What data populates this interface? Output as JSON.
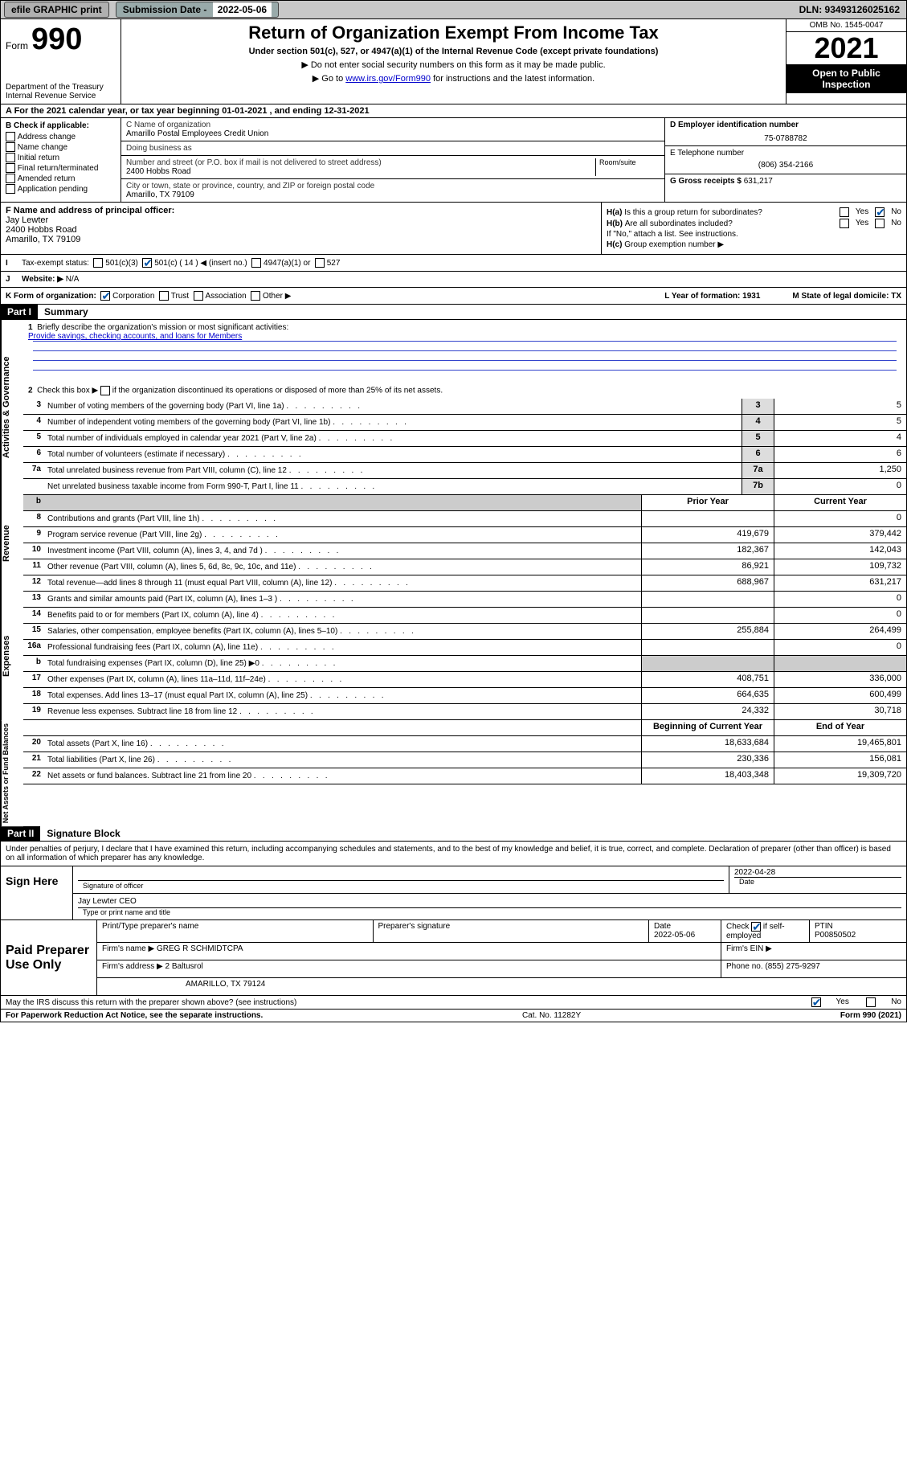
{
  "topbar": {
    "efile": "efile GRAPHIC print",
    "sub_label": "Submission Date - ",
    "sub_date": "2022-05-06",
    "dln": "DLN: 93493126025162"
  },
  "header": {
    "form_word": "Form",
    "form_no": "990",
    "title": "Return of Organization Exempt From Income Tax",
    "sub1": "Under section 501(c), 527, or 4947(a)(1) of the Internal Revenue Code (except private foundations)",
    "sub2": "Do not enter social security numbers on this form as it may be made public.",
    "sub3_a": "Go to ",
    "sub3_link": "www.irs.gov/Form990",
    "sub3_b": " for instructions and the latest information.",
    "dept": "Department of the Treasury\nInternal Revenue Service",
    "omb": "OMB No. 1545-0047",
    "year": "2021",
    "open": "Open to Public Inspection"
  },
  "rowA": "A For the 2021 calendar year, or tax year beginning 01-01-2021    , and ending 12-31-2021",
  "B": {
    "hdr": "B Check if applicable:",
    "items": [
      "Address change",
      "Name change",
      "Initial return",
      "Final return/terminated",
      "Amended return",
      "Application pending"
    ]
  },
  "C": {
    "name_lbl": "C Name of organization",
    "name": "Amarillo Postal Employees Credit Union",
    "dba_lbl": "Doing business as",
    "addr_lbl": "Number and street (or P.O. box if mail is not delivered to street address)",
    "room_lbl": "Room/suite",
    "addr": "2400 Hobbs Road",
    "city_lbl": "City or town, state or province, country, and ZIP or foreign postal code",
    "city": "Amarillo, TX  79109"
  },
  "D": {
    "lbl": "D Employer identification number",
    "val": "75-0788782"
  },
  "E": {
    "lbl": "E Telephone number",
    "val": "(806) 354-2166"
  },
  "G": {
    "lbl": "G Gross receipts $ ",
    "val": "631,217"
  },
  "F": {
    "lbl": "F Name and address of principal officer:",
    "name": "Jay Lewter",
    "addr1": "2400 Hobbs Road",
    "addr2": "Amarillo, TX  79109"
  },
  "H": {
    "a": "Is this a group return for subordinates?",
    "b": "Are all subordinates included?",
    "note": "If \"No,\" attach a list. See instructions.",
    "c": "Group exemption number ▶",
    "ha_lbl": "H(a)",
    "hb_lbl": "H(b)",
    "hc_lbl": "H(c)"
  },
  "I": {
    "lbl": "Tax-exempt status:",
    "opts": [
      "501(c)(3)",
      "501(c) ( 14 ) ◀ (insert no.)",
      "4947(a)(1) or",
      "527"
    ]
  },
  "J": {
    "lbl": "Website: ▶",
    "val": "N/A"
  },
  "K": {
    "lbl": "K Form of organization:",
    "opts": [
      "Corporation",
      "Trust",
      "Association",
      "Other ▶"
    ],
    "L": "L Year of formation: 1931",
    "M": "M State of legal domicile: TX"
  },
  "partI": {
    "hdr": "Part I",
    "title": "Summary"
  },
  "gov": {
    "q1": "Briefly describe the organization's mission or most significant activities:",
    "mission": "Provide savings, checking accounts, and loans for Members",
    "q2a": "Check this box ▶",
    "q2b": " if the organization discontinued its operations or disposed of more than 25% of its net assets.",
    "rows": [
      {
        "n": "3",
        "d": "Number of voting members of the governing body (Part VI, line 1a)",
        "box": "3",
        "v": "5"
      },
      {
        "n": "4",
        "d": "Number of independent voting members of the governing body (Part VI, line 1b)",
        "box": "4",
        "v": "5"
      },
      {
        "n": "5",
        "d": "Total number of individuals employed in calendar year 2021 (Part V, line 2a)",
        "box": "5",
        "v": "4"
      },
      {
        "n": "6",
        "d": "Total number of volunteers (estimate if necessary)",
        "box": "6",
        "v": "6"
      },
      {
        "n": "7a",
        "d": "Total unrelated business revenue from Part VIII, column (C), line 12",
        "box": "7a",
        "v": "1,250"
      },
      {
        "n": "",
        "d": "Net unrelated business taxable income from Form 990-T, Part I, line 11",
        "box": "7b",
        "v": "0"
      }
    ]
  },
  "colhdrs": {
    "prior": "Prior Year",
    "curr": "Current Year"
  },
  "rev": [
    {
      "n": "8",
      "d": "Contributions and grants (Part VIII, line 1h)",
      "p": "",
      "c": "0"
    },
    {
      "n": "9",
      "d": "Program service revenue (Part VIII, line 2g)",
      "p": "419,679",
      "c": "379,442"
    },
    {
      "n": "10",
      "d": "Investment income (Part VIII, column (A), lines 3, 4, and 7d )",
      "p": "182,367",
      "c": "142,043"
    },
    {
      "n": "11",
      "d": "Other revenue (Part VIII, column (A), lines 5, 6d, 8c, 9c, 10c, and 11e)",
      "p": "86,921",
      "c": "109,732"
    },
    {
      "n": "12",
      "d": "Total revenue—add lines 8 through 11 (must equal Part VIII, column (A), line 12)",
      "p": "688,967",
      "c": "631,217"
    }
  ],
  "exp": [
    {
      "n": "13",
      "d": "Grants and similar amounts paid (Part IX, column (A), lines 1–3 )",
      "p": "",
      "c": "0"
    },
    {
      "n": "14",
      "d": "Benefits paid to or for members (Part IX, column (A), line 4)",
      "p": "",
      "c": "0"
    },
    {
      "n": "15",
      "d": "Salaries, other compensation, employee benefits (Part IX, column (A), lines 5–10)",
      "p": "255,884",
      "c": "264,499"
    },
    {
      "n": "16a",
      "d": "Professional fundraising fees (Part IX, column (A), line 11e)",
      "p": "",
      "c": "0"
    },
    {
      "n": "b",
      "d": "Total fundraising expenses (Part IX, column (D), line 25) ▶0",
      "p": "shade",
      "c": "shade"
    },
    {
      "n": "17",
      "d": "Other expenses (Part IX, column (A), lines 11a–11d, 11f–24e)",
      "p": "408,751",
      "c": "336,000"
    },
    {
      "n": "18",
      "d": "Total expenses. Add lines 13–17 (must equal Part IX, column (A), line 25)",
      "p": "664,635",
      "c": "600,499"
    },
    {
      "n": "19",
      "d": "Revenue less expenses. Subtract line 18 from line 12",
      "p": "24,332",
      "c": "30,718"
    }
  ],
  "colhdrs2": {
    "prior": "Beginning of Current Year",
    "curr": "End of Year"
  },
  "net": [
    {
      "n": "20",
      "d": "Total assets (Part X, line 16)",
      "p": "18,633,684",
      "c": "19,465,801"
    },
    {
      "n": "21",
      "d": "Total liabilities (Part X, line 26)",
      "p": "230,336",
      "c": "156,081"
    },
    {
      "n": "22",
      "d": "Net assets or fund balances. Subtract line 21 from line 20",
      "p": "18,403,348",
      "c": "19,309,720"
    }
  ],
  "vtabs": {
    "gov": "Activities & Governance",
    "rev": "Revenue",
    "exp": "Expenses",
    "net": "Net Assets or Fund Balances"
  },
  "partII": {
    "hdr": "Part II",
    "title": "Signature Block"
  },
  "sig": {
    "intro": "Under penalties of perjury, I declare that I have examined this return, including accompanying schedules and statements, and to the best of my knowledge and belief, it is true, correct, and complete. Declaration of preparer (other than officer) is based on all information of which preparer has any knowledge.",
    "sign_here": "Sign Here",
    "sig_officer": "Signature of officer",
    "date": "2022-04-28",
    "date_lbl": "Date",
    "name": "Jay Lewter CEO",
    "name_lbl": "Type or print name and title"
  },
  "prep": {
    "left": "Paid Preparer Use Only",
    "h1": "Print/Type preparer's name",
    "h2": "Preparer's signature",
    "h3": "Date",
    "h3v": "2022-05-06",
    "h4a": "Check",
    "h4b": "if self-employed",
    "h5": "PTIN",
    "h5v": "P00850502",
    "firm_name_lbl": "Firm's name    ▶",
    "firm_name": "GREG R SCHMIDTCPA",
    "firm_ein_lbl": "Firm's EIN ▶",
    "firm_addr_lbl": "Firm's address ▶",
    "firm_addr1": "2 Baltusrol",
    "firm_addr2": "AMARILLO, TX  79124",
    "phone_lbl": "Phone no. ",
    "phone": "(855) 275-9297"
  },
  "mayirs": "May the IRS discuss this return with the preparer shown above? (see instructions)",
  "footer": {
    "left": "For Paperwork Reduction Act Notice, see the separate instructions.",
    "mid": "Cat. No. 11282Y",
    "right": "Form 990 (2021)"
  },
  "yes": "Yes",
  "no": "No"
}
